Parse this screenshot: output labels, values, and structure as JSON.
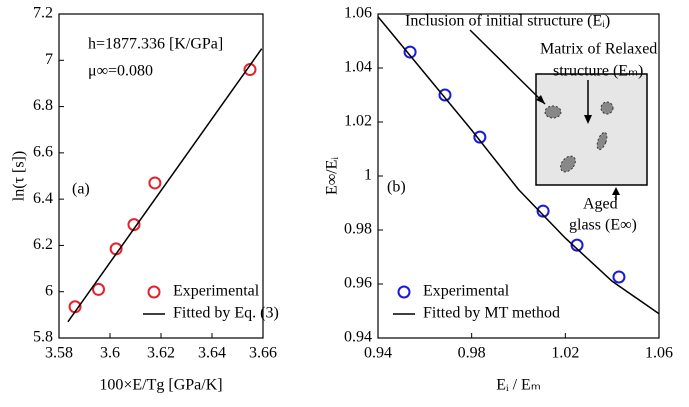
{
  "chart_data": [
    {
      "type": "line",
      "xlabel": "100×E/Tg [GPa/K]",
      "ylabel": "ln(τ [s])",
      "annotations": [
        "h=1877.336 [K/GPa]",
        "μ∞=0.080",
        "(a)"
      ],
      "xlim": [
        3.58,
        3.66
      ],
      "xticks": [
        3.58,
        3.6,
        3.62,
        3.64,
        3.66
      ],
      "ylim": [
        5.8,
        7.2
      ],
      "yticks": [
        5.8,
        6,
        6.2,
        6.4,
        6.6,
        6.8,
        7,
        7.2
      ],
      "legend": "lower right",
      "series": [
        {
          "name": "Experimental",
          "color": "#e8202a",
          "mode": "markers",
          "x": [
            3.5863,
            3.5955,
            3.6024,
            3.6094,
            3.6176,
            3.6549
          ],
          "values": [
            5.935,
            6.01,
            6.185,
            6.29,
            6.47,
            6.96
          ]
        },
        {
          "name": "Fitted by Eq. (3)",
          "color": "#000000",
          "mode": "line",
          "x": [
            3.5835,
            3.6595
          ],
          "values": [
            5.87,
            7.05
          ]
        }
      ]
    },
    {
      "type": "line",
      "xlabel": "Eᵢ / Eₘ",
      "ylabel": "E∞/Eᵢ",
      "annotations": [
        "Inclusion of initial structure (Eᵢ)",
        "Matrix of Relaxed",
        "structure (Eₘ)",
        "(b)",
        "Aged",
        "glass (E∞)"
      ],
      "xlim": [
        0.94,
        1.06
      ],
      "xticks": [
        0.94,
        0.98,
        1.02,
        1.06
      ],
      "ylim": [
        0.94,
        1.06
      ],
      "yticks": [
        0.94,
        0.96,
        0.98,
        1,
        1.02,
        1.04,
        1.06
      ],
      "legend": "lower left",
      "series": [
        {
          "name": "Experimental",
          "color": "#1a1adb",
          "mode": "markers",
          "x": [
            0.9537,
            0.9686,
            0.9835,
            1.0105,
            1.025,
            1.0429
          ],
          "values": [
            1.0459,
            1.03,
            1.0144,
            0.987,
            0.9744,
            0.9626
          ]
        },
        {
          "name": "Fitted by MT method",
          "color": "#000000",
          "mode": "line",
          "x": [
            0.94,
            0.96,
            0.98,
            1.0,
            1.02,
            1.04,
            1.06
          ],
          "values": [
            1.059,
            1.038,
            1.017,
            0.995,
            0.977,
            0.961,
            0.949
          ]
        }
      ]
    }
  ]
}
